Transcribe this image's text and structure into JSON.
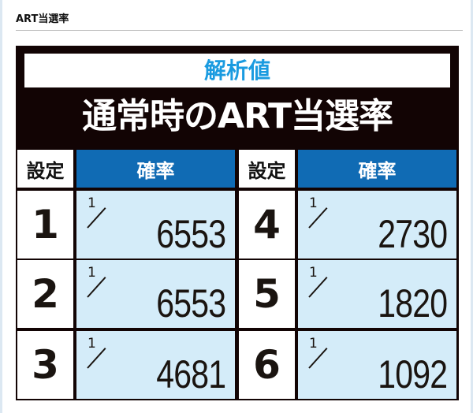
{
  "heading": "ART当選率",
  "panel": {
    "subtitle": "解析値",
    "title": "通常時のART当選率",
    "headers": {
      "setting": "設定",
      "probability": "確率"
    },
    "rows": [
      {
        "setting": "1",
        "numerator": "1",
        "denominator": "6553"
      },
      {
        "setting": "2",
        "numerator": "1",
        "denominator": "6553"
      },
      {
        "setting": "3",
        "numerator": "1",
        "denominator": "4681"
      },
      {
        "setting": "4",
        "numerator": "1",
        "denominator": "2730"
      },
      {
        "setting": "5",
        "numerator": "1",
        "denominator": "1820"
      },
      {
        "setting": "6",
        "numerator": "1",
        "denominator": "1092"
      }
    ]
  },
  "colors": {
    "subtitle": "#1a9be0",
    "header_blue": "#106bb4",
    "cell_blue": "#d4ecf9",
    "panel": "#120404"
  }
}
